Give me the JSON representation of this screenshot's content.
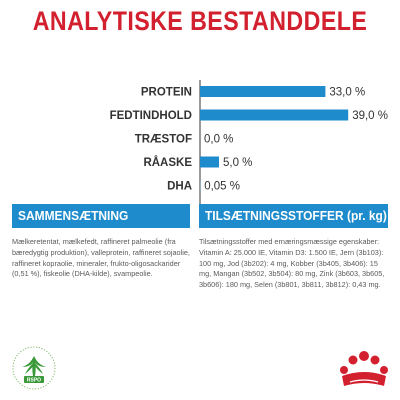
{
  "title": "ANALYTISKE BESTANDDELE",
  "chart_data": {
    "type": "bar",
    "orientation": "horizontal",
    "categories": [
      "PROTEIN",
      "FEDTINDHOLD",
      "TRÆSTOF",
      "RÅASKE",
      "DHA"
    ],
    "values": [
      33.0,
      39.0,
      0.0,
      5.0,
      0.05
    ],
    "value_labels": [
      "33,0 %",
      "39,0 %",
      "0,0 %",
      "5,0 %",
      "0,05 %"
    ],
    "xlim": [
      0,
      40
    ],
    "bar_color": "#1e8bcc",
    "grid": false,
    "xlabel": "",
    "ylabel": ""
  },
  "panels": {
    "composition": {
      "heading": "SAMMENSÆTNING",
      "text": "Mælkeretentat, mælkefedt, raffineret palmeolie (fra bæredygtig produktion), valleprotein, raffineret sojaolie, raffineret kopraolie, mineraler, frukto-oligosackarider (0,51 %), fiskeolie (DHA-kilde), svampeolie."
    },
    "additives": {
      "heading": "TILSÆTNINGSSTOFFER (pr. kg)",
      "text": "Tilsætningsstoffer med ernæringsmæssige egenskaber: Vitamin A: 25.000 IE, Vitamin D3: 1.500 IE, Jern (3b103): 100 mg, Jod (3b202): 4 mg, Kobber (3b405, 3b406): 15 mg, Mangan (3b502, 3b504): 80 mg, Zink (3b603, 3b605, 3b606): 180 mg, Selen (3b801, 3b811, 3b812): 0,43 mg."
    }
  },
  "logos": {
    "rspo": {
      "label": "RSPO",
      "icon": "palm-leaf-icon",
      "color": "#3a9a3a"
    },
    "royal_canin": {
      "icon": "crown-icon",
      "color": "#d3202f"
    }
  },
  "colors": {
    "accent": "#d3202f",
    "bar": "#1e8bcc"
  }
}
